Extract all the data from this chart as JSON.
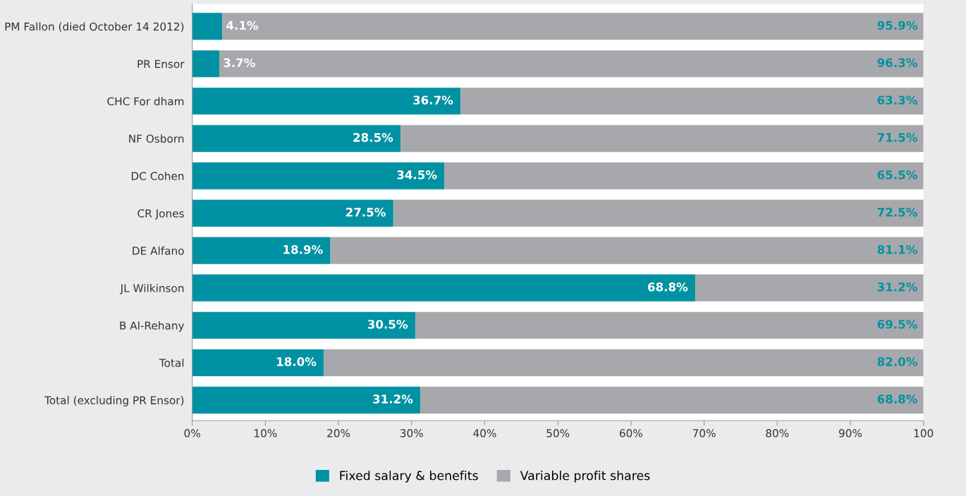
{
  "chart_data": {
    "type": "bar",
    "orientation": "horizontal",
    "stacked": true,
    "categories": [
      "PM Fallon (died October 14 2012)",
      "PR Ensor",
      "CHC For dham",
      "NF Osborn",
      "DC Cohen",
      "CR Jones",
      "DE Alfano",
      "JL Wilkinson",
      "B Al-Rehany",
      "Total",
      "Total (excluding PR Ensor)"
    ],
    "series": [
      {
        "name": "Fixed salary & benefits",
        "color": "#0092a3",
        "values": [
          4.1,
          3.7,
          36.7,
          28.5,
          34.5,
          27.5,
          18.9,
          68.8,
          30.5,
          18.0,
          31.2
        ],
        "value_labels": [
          "4.1%",
          "3.7%",
          "36.7%",
          "28.5%",
          "34.5%",
          "27.5%",
          "18.9%",
          "68.8%",
          "30.5%",
          "18.0%",
          "31.2%"
        ]
      },
      {
        "name": "Variable profit shares",
        "color": "#a7a8ab",
        "values": [
          95.9,
          96.3,
          63.3,
          71.5,
          65.5,
          72.5,
          81.1,
          31.2,
          69.5,
          82.0,
          68.8
        ],
        "value_labels": [
          "95.9%",
          "96.3%",
          "63.3%",
          "71.5%",
          "65.5%",
          "72.5%",
          "81.1%",
          "31.2%",
          "69.5%",
          "82.0%",
          "68.8%"
        ]
      }
    ],
    "xlim": [
      0,
      100
    ],
    "xticks": [
      {
        "value": 0,
        "label": "0%"
      },
      {
        "value": 10,
        "label": "10%"
      },
      {
        "value": 20,
        "label": "20%"
      },
      {
        "value": 30,
        "label": "30%"
      },
      {
        "value": 40,
        "label": "40%"
      },
      {
        "value": 50,
        "label": "50%"
      },
      {
        "value": 60,
        "label": "60%"
      },
      {
        "value": 70,
        "label": "70%"
      },
      {
        "value": 80,
        "label": "80%"
      },
      {
        "value": 90,
        "label": "90%"
      },
      100
    ],
    "grid": false,
    "legend": "bottom"
  }
}
